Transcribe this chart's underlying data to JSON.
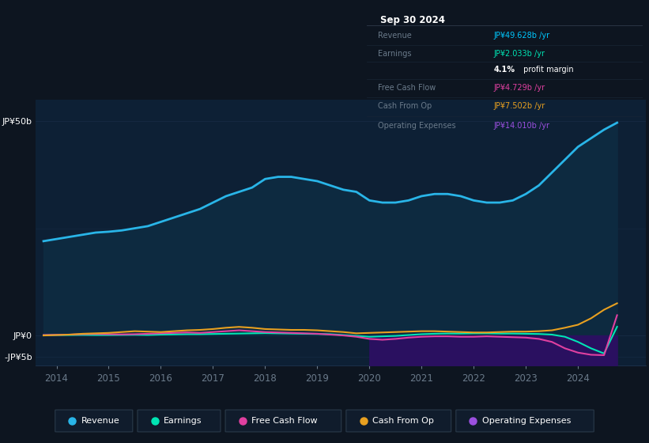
{
  "bg_color": "#0d1520",
  "plot_bg_color": "#0d2035",
  "revenue_color": "#29b5e8",
  "revenue_fill": "#0d2a40",
  "earnings_color": "#00e5b4",
  "fcf_color": "#e040a0",
  "cfo_color": "#e8a020",
  "opex_color": "#9b50e0",
  "opex_fill": "#2a1060",
  "grid_color": "#1e3550",
  "text_color": "#6a7a8a",
  "white": "#ffffff",
  "tooltip_bg": "#06090e",
  "tooltip_border": "#2a3545",
  "years": [
    2013.75,
    2014.0,
    2014.25,
    2014.5,
    2014.75,
    2015.0,
    2015.25,
    2015.5,
    2015.75,
    2016.0,
    2016.25,
    2016.5,
    2016.75,
    2017.0,
    2017.25,
    2017.5,
    2017.75,
    2018.0,
    2018.25,
    2018.5,
    2018.75,
    2019.0,
    2019.25,
    2019.5,
    2019.75,
    2020.0,
    2020.25,
    2020.5,
    2020.75,
    2021.0,
    2021.25,
    2021.5,
    2021.75,
    2022.0,
    2022.25,
    2022.5,
    2022.75,
    2023.0,
    2023.25,
    2023.5,
    2023.75,
    2024.0,
    2024.25,
    2024.5,
    2024.75
  ],
  "revenue": [
    22.0,
    22.5,
    23.0,
    23.5,
    24.0,
    24.2,
    24.5,
    25.0,
    25.5,
    26.5,
    27.5,
    28.5,
    29.5,
    31.0,
    32.5,
    33.5,
    34.5,
    36.5,
    37.0,
    37.0,
    36.5,
    36.0,
    35.0,
    34.0,
    33.5,
    31.5,
    31.0,
    31.0,
    31.5,
    32.5,
    33.0,
    33.0,
    32.5,
    31.5,
    31.0,
    31.0,
    31.5,
    33.0,
    35.0,
    38.0,
    41.0,
    44.0,
    46.0,
    48.0,
    49.628
  ],
  "earnings": [
    0.05,
    0.1,
    0.1,
    0.12,
    0.1,
    0.1,
    0.12,
    0.15,
    0.12,
    0.2,
    0.25,
    0.3,
    0.3,
    0.35,
    0.4,
    0.45,
    0.5,
    0.55,
    0.5,
    0.45,
    0.4,
    0.35,
    0.3,
    0.1,
    -0.1,
    -0.3,
    -0.2,
    -0.1,
    0.1,
    0.3,
    0.4,
    0.45,
    0.45,
    0.5,
    0.5,
    0.45,
    0.45,
    0.4,
    0.35,
    0.2,
    -0.3,
    -1.5,
    -3.0,
    -4.2,
    2.033
  ],
  "fcf": [
    0.1,
    0.15,
    0.2,
    0.3,
    0.35,
    0.3,
    0.25,
    0.3,
    0.4,
    0.5,
    0.6,
    0.7,
    0.6,
    0.8,
    1.0,
    1.2,
    1.0,
    0.8,
    0.7,
    0.6,
    0.5,
    0.4,
    0.2,
    0.0,
    -0.3,
    -0.8,
    -1.0,
    -0.8,
    -0.5,
    -0.3,
    -0.2,
    -0.2,
    -0.3,
    -0.3,
    -0.2,
    -0.3,
    -0.4,
    -0.5,
    -0.8,
    -1.5,
    -3.0,
    -4.0,
    -4.5,
    -4.6,
    4.729
  ],
  "cfo": [
    0.0,
    0.1,
    0.2,
    0.4,
    0.5,
    0.6,
    0.8,
    1.0,
    0.9,
    0.8,
    1.0,
    1.2,
    1.3,
    1.5,
    1.8,
    2.0,
    1.8,
    1.5,
    1.4,
    1.3,
    1.3,
    1.2,
    1.0,
    0.8,
    0.5,
    0.6,
    0.7,
    0.8,
    0.9,
    1.0,
    1.0,
    0.9,
    0.8,
    0.7,
    0.7,
    0.8,
    0.9,
    0.9,
    1.0,
    1.2,
    1.8,
    2.5,
    4.0,
    6.0,
    7.502
  ],
  "opex": [
    0.0,
    0.0,
    0.0,
    0.0,
    0.0,
    0.0,
    0.0,
    0.0,
    0.0,
    0.0,
    0.0,
    0.0,
    0.0,
    0.0,
    0.0,
    0.0,
    0.0,
    0.0,
    0.0,
    0.0,
    0.0,
    0.0,
    0.0,
    0.0,
    0.0,
    -12.0,
    -12.0,
    -12.0,
    -12.0,
    -12.0,
    -12.0,
    -12.1,
    -12.1,
    -12.2,
    -12.3,
    -12.4,
    -12.5,
    -12.6,
    -12.8,
    -13.0,
    -13.3,
    -13.5,
    -13.7,
    -13.9,
    -14.01
  ],
  "xlim": [
    2013.6,
    2025.3
  ],
  "ylim": [
    -7.0,
    55.0
  ],
  "xtick_years": [
    2014,
    2015,
    2016,
    2017,
    2018,
    2019,
    2020,
    2021,
    2022,
    2023,
    2024
  ],
  "ytick_vals": [
    -5.0,
    0.0,
    50.0
  ],
  "ytick_labels": [
    "-JP¥5b",
    "JP¥0",
    "JP¥50b"
  ],
  "tooltip": {
    "title": "Sep 30 2024",
    "rows": [
      {
        "label": "Revenue",
        "value": "JP¥49.628b /yr",
        "color": "#00c8ff"
      },
      {
        "label": "Earnings",
        "value": "JP¥2.033b /yr",
        "color": "#00e5b4"
      },
      {
        "label": "",
        "value": "4.1% profit margin",
        "color": "#ffffff"
      },
      {
        "label": "Free Cash Flow",
        "value": "JP¥4.729b /yr",
        "color": "#e040a0"
      },
      {
        "label": "Cash From Op",
        "value": "JP¥7.502b /yr",
        "color": "#e8a020"
      },
      {
        "label": "Operating Expenses",
        "value": "JP¥14.010b /yr",
        "color": "#9b50e0"
      }
    ]
  },
  "legend": [
    {
      "label": "Revenue",
      "color": "#29b5e8"
    },
    {
      "label": "Earnings",
      "color": "#00e5b4"
    },
    {
      "label": "Free Cash Flow",
      "color": "#e040a0"
    },
    {
      "label": "Cash From Op",
      "color": "#e8a020"
    },
    {
      "label": "Operating Expenses",
      "color": "#9b50e0"
    }
  ]
}
